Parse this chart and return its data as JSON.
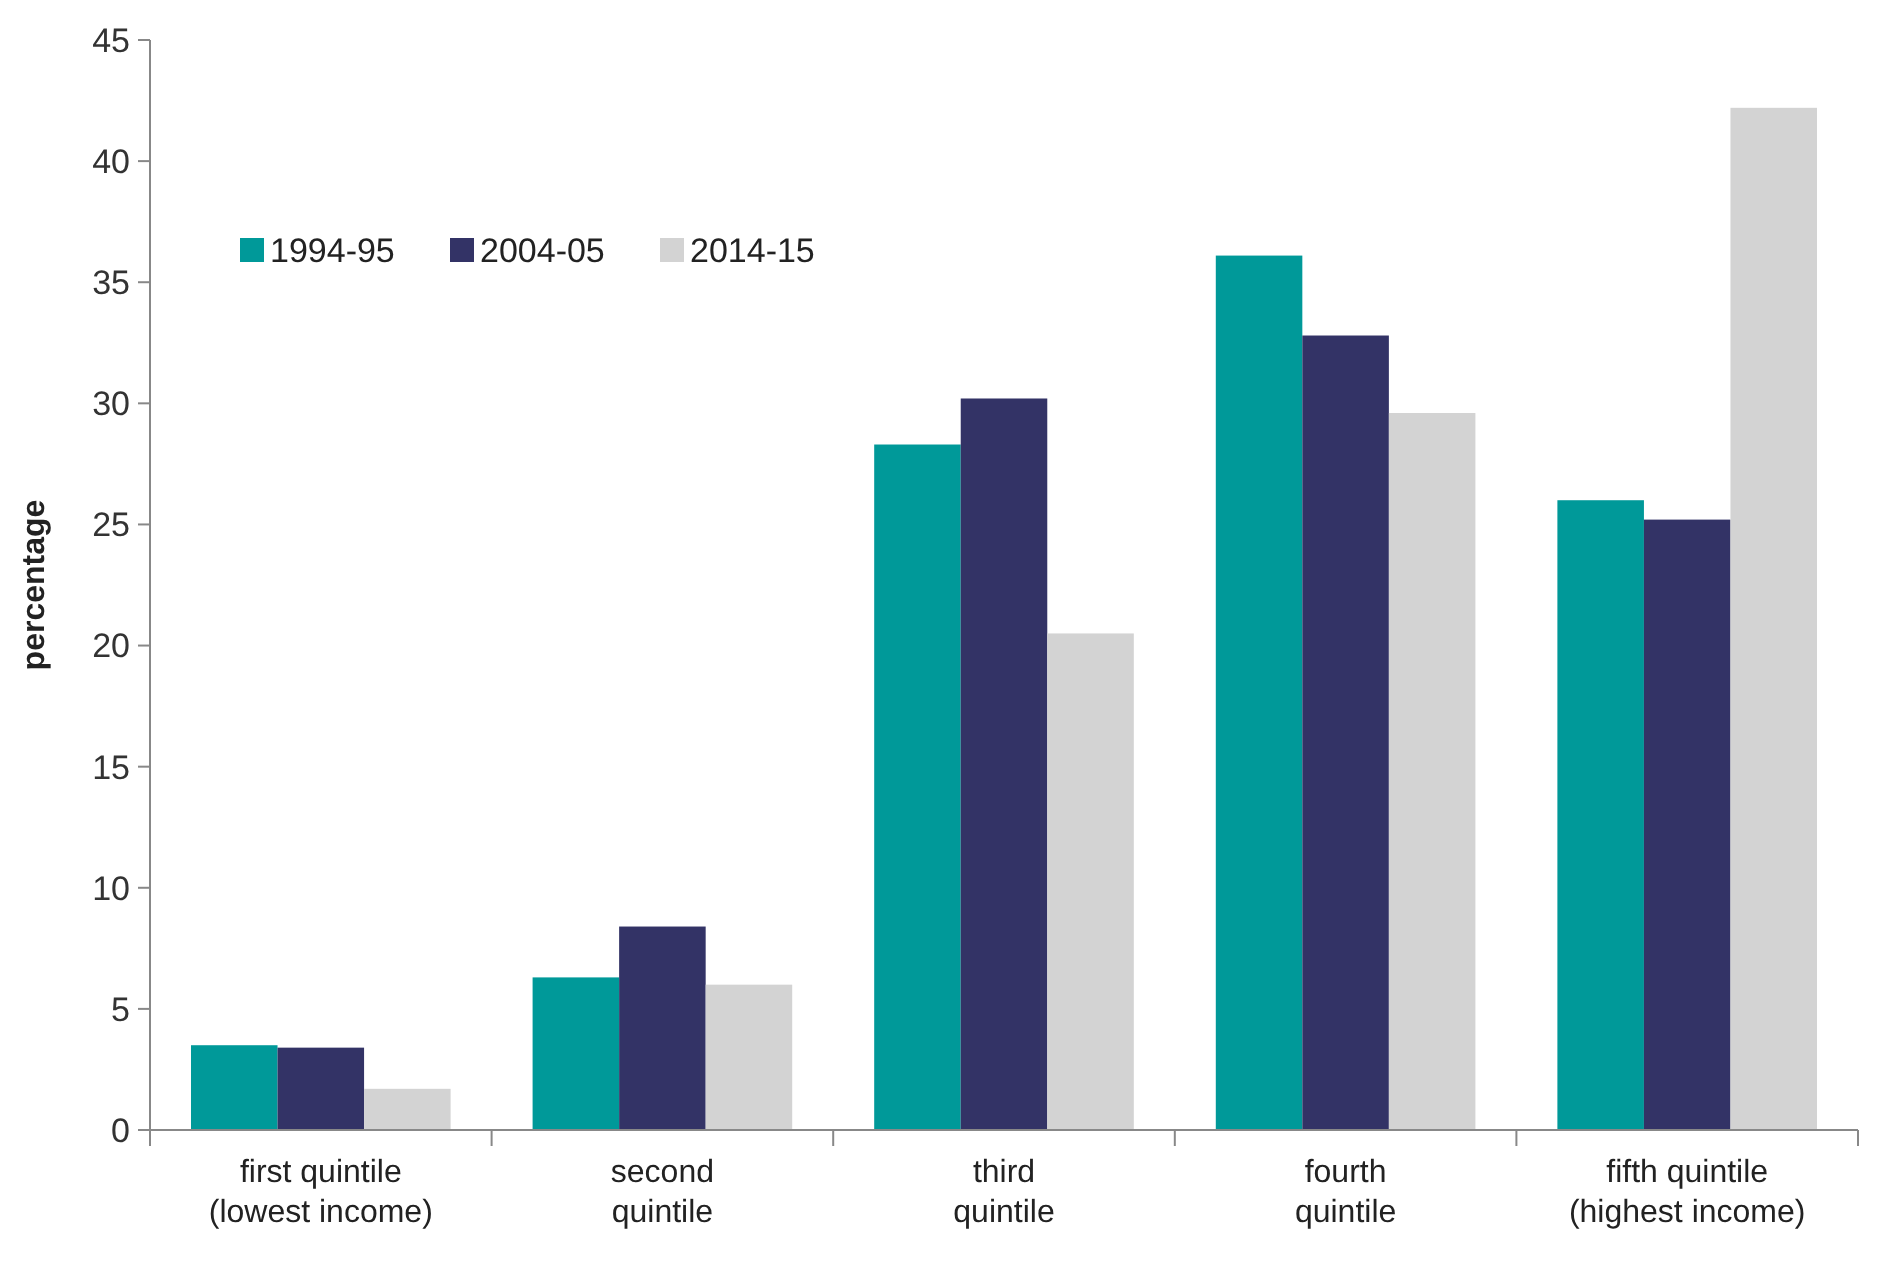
{
  "chart_data": {
    "type": "bar",
    "ylabel": "percentage",
    "categories": [
      "first quintile\n(lowest income)",
      "second\nquintile",
      "third\nquintile",
      "fourth\nquintile",
      "fifth quintile\n(highest income)"
    ],
    "series": [
      {
        "name": "1994-95",
        "color": "#009999",
        "values": [
          3.5,
          6.3,
          28.3,
          36.1,
          26.0
        ]
      },
      {
        "name": "2004-05",
        "color": "#333366",
        "values": [
          3.4,
          8.4,
          30.2,
          32.8,
          25.2
        ]
      },
      {
        "name": "2014-15",
        "color": "#d3d3d3",
        "values": [
          1.7,
          6.0,
          20.5,
          29.6,
          42.2
        ]
      }
    ],
    "ylim": [
      0,
      45
    ],
    "yticks": [
      0,
      5,
      10,
      15,
      20,
      25,
      30,
      35,
      40,
      45
    ],
    "grid": false,
    "legend": "top left"
  }
}
